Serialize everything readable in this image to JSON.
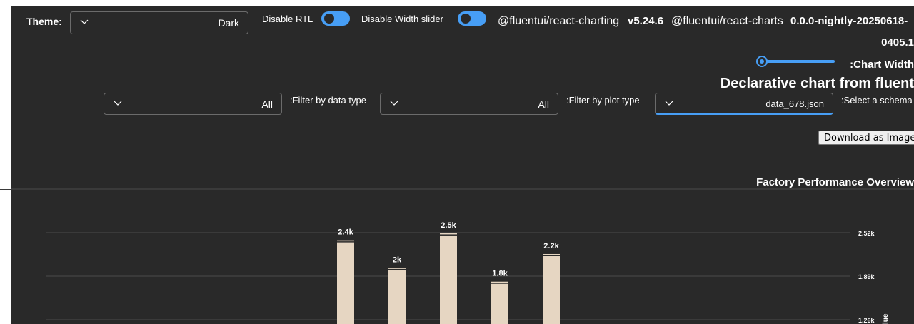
{
  "header": {
    "theme_label": "Theme:",
    "theme_value": "Dark",
    "rtl_label": "Disable RTL",
    "width_slider_label": "Disable Width slider",
    "pkg1_name": "@fluentui/react-charting",
    "pkg1_version": "v5.24.6",
    "pkg2_name": "@fluentui/react-charts",
    "pkg2_version_line1": "0.0.0-nightly-20250618-",
    "pkg2_version_line2": "0405.1",
    "chart_width_label": ":Chart Width",
    "page_title": "Declarative chart from fluent"
  },
  "filters": {
    "data_type_label": ":Filter by data type",
    "data_type_value": "All",
    "plot_type_label": ":Filter by plot type",
    "plot_type_value": "All",
    "schema_label": ":Select a schema",
    "schema_value": "data_678.json"
  },
  "download_button": "Download as Image",
  "chart_width_level": 0.0,
  "colors": {
    "background": "#292929",
    "accent": "#479ef5",
    "bar_fill": "#e6d6c2",
    "gridline": "#4a4a4a"
  },
  "chart_data": {
    "type": "bar",
    "title": "Factory Performance Overview",
    "ylabel": "lue",
    "y_ticks": [
      "2.52k",
      "1.89k",
      "1.26k"
    ],
    "y_tick_values": [
      2520,
      1890,
      1260
    ],
    "ylim": [
      0,
      2520
    ],
    "y_axis_side": "right",
    "series": [
      {
        "values": [
          2400,
          2000,
          2500,
          1800,
          2200
        ],
        "data_labels": [
          "2.4k",
          "2k",
          "2.5k",
          "1.8k",
          "2.2k"
        ]
      }
    ]
  }
}
